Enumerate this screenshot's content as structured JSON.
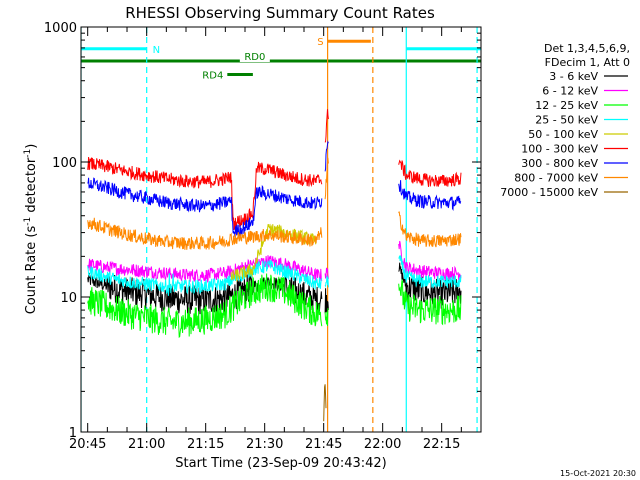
{
  "chart_data": {
    "type": "line",
    "title": "RHESSI Observing Summary Count Rates",
    "xlabel": "Start Time (23-Sep-09 20:43:42)",
    "ylabel_main": "Count Rate (s",
    "ylabel_sup1": "-1",
    "ylabel_mid": " detector",
    "ylabel_sup2": "-1",
    "ylabel_end": ")",
    "y_scale": "log",
    "ylim": [
      1,
      1000
    ],
    "xlim_minutes": [
      -1.7,
      100
    ],
    "y_ticks": [
      {
        "label": "1",
        "value": 1
      },
      {
        "label": "10",
        "value": 10
      },
      {
        "label": "100",
        "value": 100
      },
      {
        "label": "1000",
        "value": 1000
      }
    ],
    "x_ticks": [
      {
        "label": "20:45",
        "minutes": 0
      },
      {
        "label": "21:00",
        "minutes": 15
      },
      {
        "label": "21:15",
        "minutes": 30
      },
      {
        "label": "21:30",
        "minutes": 45
      },
      {
        "label": "21:45",
        "minutes": 60
      },
      {
        "label": "22:00",
        "minutes": 75
      },
      {
        "label": "22:15",
        "minutes": 90
      }
    ],
    "legend": {
      "placement": "right",
      "header": [
        "Det 1,3,4,5,6,9,",
        "FDecim 1, Att 0"
      ]
    },
    "series": [
      {
        "name": "3 - 6 keV",
        "color": "#000000",
        "x": [
          0,
          5,
          10,
          15,
          20,
          25,
          30,
          35,
          38,
          42,
          46,
          50,
          54,
          58,
          59.5,
          79,
          81,
          85,
          90,
          95
        ],
        "y": [
          13.5,
          12,
          11,
          10.5,
          9.8,
          9.5,
          9.5,
          9.8,
          10.5,
          12,
          13,
          12,
          10.5,
          9.5,
          9.5,
          17,
          12,
          11,
          10.5,
          11
        ]
      },
      {
        "name": "6 - 12 keV",
        "color": "#ff00ff",
        "x": [
          0,
          5,
          10,
          15,
          20,
          25,
          30,
          35,
          38,
          42,
          46,
          50,
          54,
          58,
          59.5,
          79,
          81,
          85,
          90,
          95
        ],
        "y": [
          17.5,
          16.5,
          16,
          15.5,
          15,
          14.5,
          14.5,
          15,
          16,
          17.5,
          18.5,
          17.5,
          16,
          14.5,
          14.5,
          25,
          16.5,
          15.5,
          15,
          15
        ]
      },
      {
        "name": "12 - 25 keV",
        "color": "#00ff00",
        "x": [
          0,
          5,
          10,
          15,
          20,
          25,
          30,
          35,
          38,
          42,
          46,
          50,
          54,
          58,
          59.5,
          79,
          81,
          85,
          90,
          95
        ],
        "y": [
          9.5,
          8.5,
          7.5,
          7,
          6.5,
          6.5,
          6.8,
          7.5,
          9,
          11,
          12,
          11,
          9,
          7.5,
          7.5,
          13,
          8.5,
          8,
          8,
          8
        ]
      },
      {
        "name": "25 - 50 keV",
        "color": "#00ffff",
        "x": [
          0,
          5,
          10,
          15,
          20,
          25,
          30,
          35,
          38,
          42,
          46,
          50,
          54,
          58,
          59.5,
          79,
          81,
          85,
          90,
          95
        ],
        "y": [
          15.5,
          14,
          13,
          12.5,
          12,
          12,
          12,
          12.5,
          14,
          16,
          17,
          15.5,
          14,
          12.5,
          12.5,
          20,
          14,
          13,
          13,
          13
        ]
      },
      {
        "name": "50 - 100 keV",
        "color": "#cccc00",
        "x": [
          36.5,
          38,
          42,
          46,
          50,
          54,
          58
        ],
        "y": [
          14,
          14.5,
          16,
          32,
          30,
          28,
          26
        ]
      },
      {
        "name": "100 - 300 keV",
        "color": "#ff0000",
        "x": [
          0,
          5,
          10,
          15,
          20,
          25,
          30,
          35,
          36.5,
          37,
          40,
          42,
          43,
          46,
          50,
          54,
          58,
          59.5,
          60.5,
          61,
          79,
          81,
          85,
          90,
          95
        ],
        "y": [
          98,
          92,
          85,
          80,
          75,
          72,
          71,
          75,
          78,
          35,
          38,
          42,
          90,
          88,
          80,
          75,
          72,
          75,
          150,
          230,
          105,
          80,
          74,
          72,
          75
        ]
      },
      {
        "name": "300 - 800 keV",
        "color": "#0000ff",
        "x": [
          0,
          5,
          10,
          15,
          20,
          25,
          30,
          35,
          36.5,
          37,
          40,
          42,
          43,
          46,
          50,
          54,
          58,
          59.5,
          60.5,
          61,
          79,
          81,
          85,
          90,
          95
        ],
        "y": [
          70,
          64,
          58,
          54,
          50,
          48,
          47,
          50,
          52,
          30,
          33,
          36,
          60,
          58,
          54,
          51,
          49,
          52,
          100,
          150,
          70,
          55,
          51,
          50,
          50
        ]
      },
      {
        "name": "800 - 7000 keV",
        "color": "#ff8800",
        "x": [
          0,
          5,
          10,
          15,
          20,
          25,
          30,
          35,
          36.5,
          42,
          46,
          50,
          54,
          58,
          59.5,
          60.5,
          61,
          79,
          81,
          85,
          90,
          95
        ],
        "y": [
          36,
          32,
          29,
          27,
          25.5,
          25,
          25,
          26,
          27,
          28,
          29,
          28,
          27,
          26,
          30,
          60,
          100,
          40,
          28,
          26,
          26,
          27
        ]
      },
      {
        "name": "7000 - 15000 keV",
        "color": "#996600",
        "x": [
          60,
          60.3,
          60.6
        ],
        "y": [
          1.2,
          2.5,
          1.5
        ]
      }
    ],
    "annotations": {
      "bars": [
        {
          "label": "N",
          "color": "#00ffff",
          "y": 690,
          "segments": [
            [
              -1.7,
              15
            ],
            [
              81,
              100
            ]
          ]
        },
        {
          "label": "S",
          "color": "#ff8800",
          "y": 785,
          "segments": [
            [
              61,
              72
            ]
          ]
        },
        {
          "label": "RD0",
          "color": "#008000",
          "y": 560,
          "segments": [
            [
              -1.7,
              100
            ]
          ]
        },
        {
          "label": "RD4",
          "color": "#008000",
          "y": 445,
          "segments": [
            [
              35.5,
              42
            ]
          ]
        }
      ],
      "vlines": [
        {
          "minutes": -1.7,
          "color": "#00ffff",
          "style": "solid"
        },
        {
          "minutes": 15,
          "color": "#00ffff",
          "style": "dashed"
        },
        {
          "minutes": 81,
          "color": "#00ffff",
          "style": "solid"
        },
        {
          "minutes": 99,
          "color": "#00ffff",
          "style": "dashed"
        },
        {
          "minutes": 61,
          "color": "#ff8800",
          "style": "solid"
        },
        {
          "minutes": 72.5,
          "color": "#ff8800",
          "style": "dashed"
        }
      ]
    },
    "footer": "15-Oct-2021 20:30"
  }
}
